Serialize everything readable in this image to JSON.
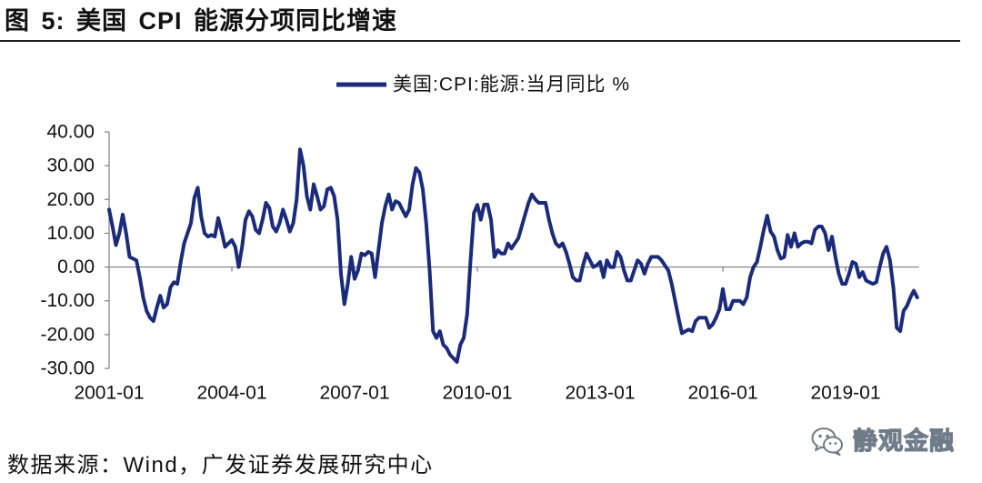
{
  "figure": {
    "source": "数据来源：Wind，广发证券发展研究中心"
  },
  "watermark": {
    "text": "静观金融",
    "icon": "wechat-icon"
  },
  "colors": {
    "series": "#1b2b7c",
    "axis": "#7f7f7f",
    "rule": "#1f1f1f"
  },
  "chart_data": {
    "type": "line",
    "title": "图 5: 美国 CPI 能源分项同比增速",
    "ylim": [
      -30,
      40
    ],
    "grid": false,
    "ytick_labels": [
      "40.00",
      "30.00",
      "20.00",
      "10.00",
      "0.00",
      "-10.00",
      "-20.00",
      "-30.00"
    ],
    "xtick_labels": [
      "2001-01",
      "2004-01",
      "2007-01",
      "2010-01",
      "2013-01",
      "2016-01",
      "2019-01"
    ],
    "series": [
      {
        "name": "美国:CPI:能源:当月同比 %",
        "values": [
          17,
          12,
          6.5,
          10,
          15.5,
          10,
          3,
          2.5,
          2,
          -3,
          -9,
          -13,
          -15,
          -16,
          -12,
          -8.5,
          -12,
          -11,
          -6,
          -4.5,
          -5,
          1.5,
          7,
          10,
          13,
          20.5,
          23.5,
          15,
          10,
          9,
          9.5,
          9,
          14.5,
          10.5,
          6,
          7,
          8,
          6,
          0,
          6,
          14,
          16.5,
          15,
          11,
          10,
          14,
          19,
          17.5,
          12,
          10.5,
          13,
          17,
          14,
          10.5,
          13,
          20,
          34.8,
          30,
          21,
          17,
          24.5,
          21,
          17,
          18,
          23,
          23.5,
          21,
          14,
          -2,
          -11,
          -5,
          3,
          -3.5,
          -1,
          4,
          3.5,
          4.5,
          4,
          -3,
          5,
          13,
          18,
          21.5,
          17,
          19.5,
          19,
          17,
          15,
          17,
          24.5,
          29.3,
          28,
          23,
          13,
          -1,
          -19,
          -21,
          -19,
          -23,
          -24,
          -26,
          -27,
          -28.1,
          -23,
          -21,
          -14,
          2,
          16,
          18.4,
          14,
          18.5,
          18.5,
          14,
          3,
          5,
          4,
          4,
          7,
          5.5,
          7,
          8.5,
          12,
          15.5,
          19,
          21.5,
          20,
          19,
          19,
          19,
          14,
          10,
          7,
          6,
          7,
          4.5,
          1,
          -3,
          -4,
          -4,
          0.5,
          4,
          2,
          0,
          0.5,
          1.5,
          -3,
          2,
          0,
          0,
          4.5,
          3,
          -1,
          -4,
          -4,
          -1,
          2,
          1,
          -2,
          1,
          3,
          3,
          3,
          2,
          0.5,
          -1,
          -5,
          -10,
          -15,
          -19.6,
          -19,
          -18.5,
          -19,
          -16,
          -15,
          -15,
          -15,
          -18,
          -17,
          -15,
          -12.5,
          -6.5,
          -12.5,
          -12.5,
          -10,
          -10,
          -10,
          -11,
          -9,
          -3,
          0,
          1.5,
          6,
          11,
          15.2,
          10.5,
          9,
          5,
          2.5,
          3,
          9.5,
          6,
          10,
          6,
          7,
          7.5,
          7.5,
          7,
          11,
          12,
          12,
          10,
          5,
          9,
          3,
          -2,
          -5,
          -5,
          -2,
          1.5,
          1,
          -3,
          -1.5,
          -4,
          -4.5,
          -5,
          -4.5,
          0,
          4,
          6,
          2,
          -6,
          -18,
          -19,
          -13,
          -11.5,
          -9,
          -7,
          -9
        ]
      }
    ]
  }
}
